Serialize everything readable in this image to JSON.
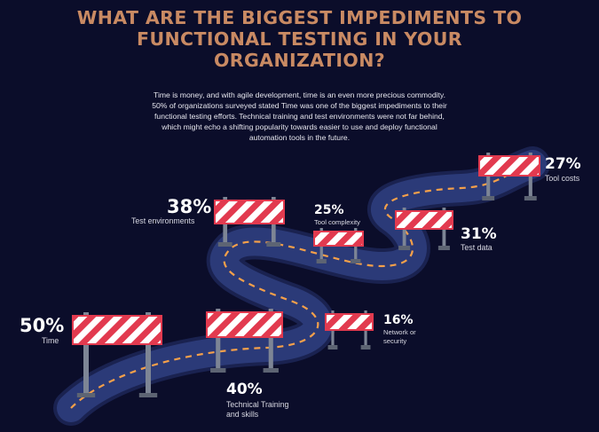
{
  "title": {
    "line1": "WHAT ARE THE BIGGEST IMPEDIMENTS TO",
    "line2": "FUNCTIONAL TESTING IN YOUR",
    "line3": "ORGANIZATION?"
  },
  "intro": {
    "line1": "Time is money, and with agile development, time is an even more precious commodity.",
    "line2": "50% of organizations surveyed stated Time was one of the biggest impediments to their",
    "line3": "functional testing efforts.  Technical training and test environments were not far behind,",
    "line4": "which might echo a shifting popularity towards easier to use and deploy functional",
    "line5": "automation tools in the future."
  },
  "impediments": [
    {
      "percent": "50%",
      "label": "Time"
    },
    {
      "percent": "40%",
      "label_line1": "Technical Training",
      "label_line2": "and skills"
    },
    {
      "percent": "16%",
      "label_line1": "Network or",
      "label_line2": "security"
    },
    {
      "percent": "38%",
      "label": "Test environments"
    },
    {
      "percent": "25%",
      "label": "Tool complexity"
    },
    {
      "percent": "31%",
      "label": "Test data"
    },
    {
      "percent": "27%",
      "label": "Tool costs"
    }
  ],
  "colors": {
    "background": "#0b0d2a",
    "title": "#c98a63",
    "road": "#2b3a78",
    "road_edge": "#1a2250",
    "road_dash": "#f5a04a",
    "barrier_red": "#e23a4f",
    "barrier_white": "#ffffff",
    "barrier_post": "#7d8595"
  }
}
